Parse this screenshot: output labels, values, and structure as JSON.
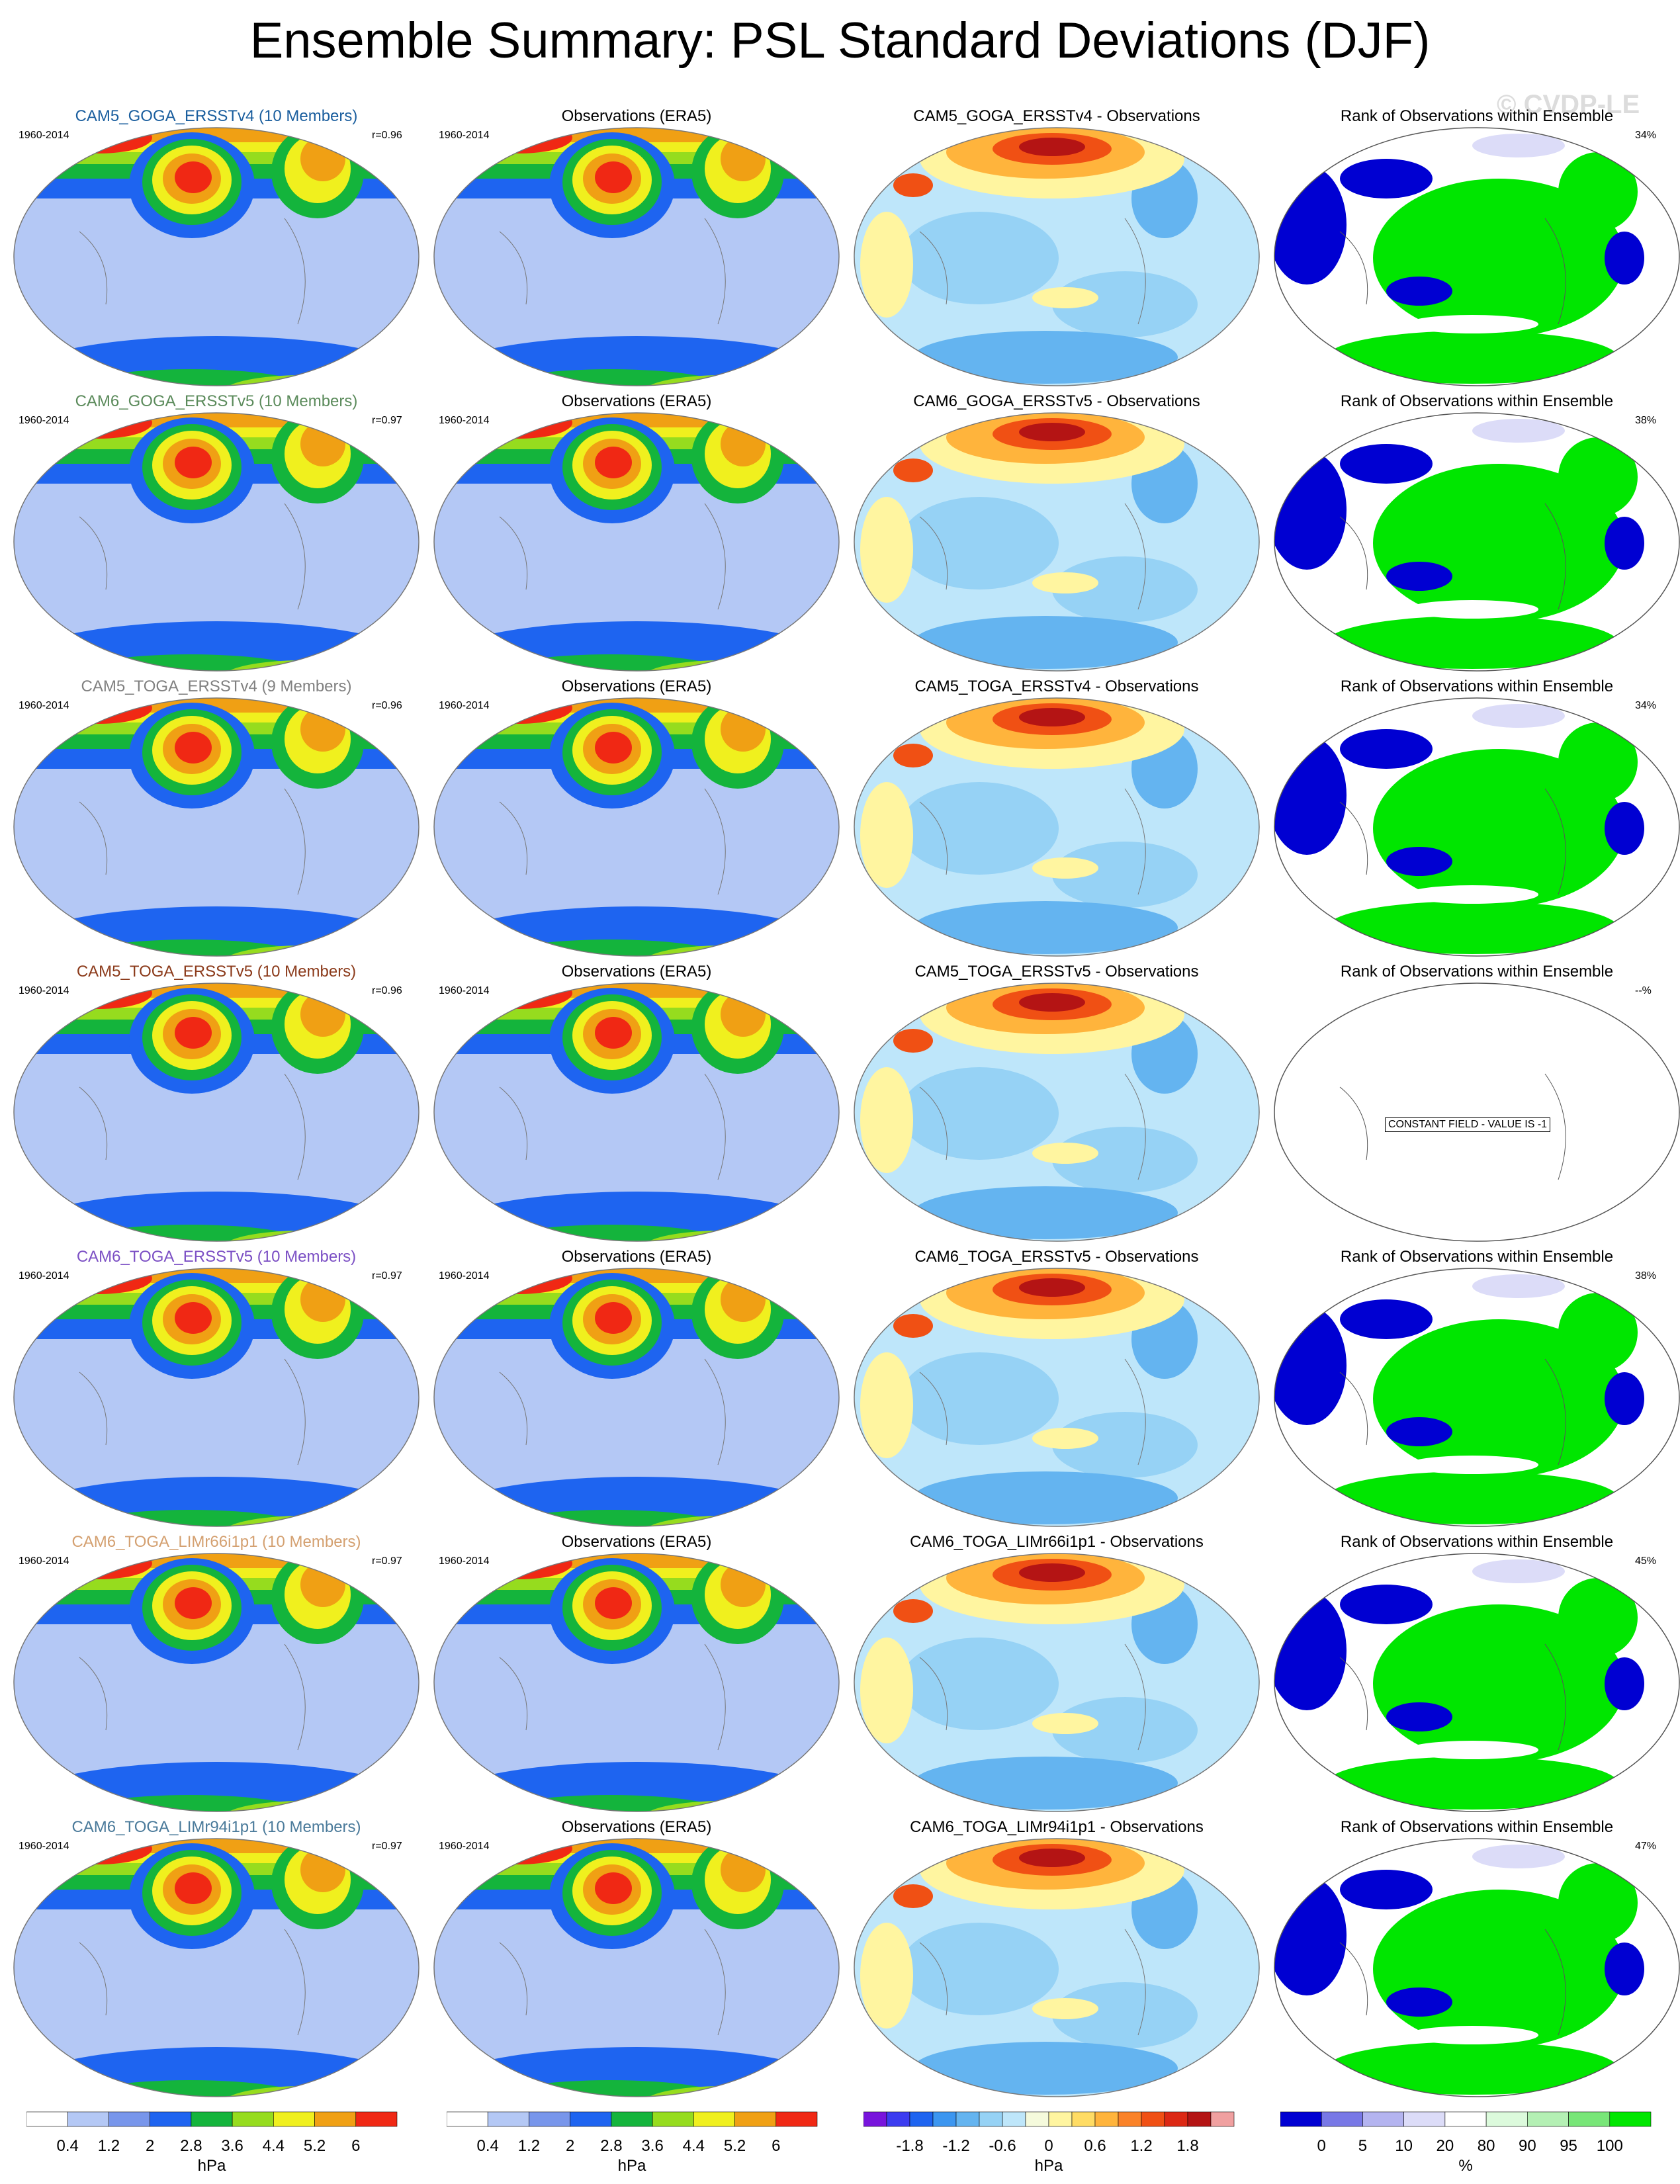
{
  "title": "Ensemble Summary: PSL Standard Deviations (DJF)",
  "watermark": "© CVDP-LE",
  "years": "1960-2014",
  "rows": [
    {
      "ens": "CAM5_GOGA_ERSSTv4 (10 Members)",
      "ens_color": "#1a5e9e",
      "r": "r=0.96",
      "obs": "Observations (ERA5)",
      "diff": "CAM5_GOGA_ERSSTv4 - Observations",
      "rank": "Rank of Observations within Ensemble",
      "pct": "34%"
    },
    {
      "ens": "CAM6_GOGA_ERSSTv5 (10 Members)",
      "ens_color": "#5a8a5a",
      "r": "r=0.97",
      "obs": "Observations (ERA5)",
      "diff": "CAM6_GOGA_ERSSTv5 - Observations",
      "rank": "Rank of Observations within Ensemble",
      "pct": "38%"
    },
    {
      "ens": "CAM5_TOGA_ERSSTv4 (9 Members)",
      "ens_color": "#808080",
      "r": "r=0.96",
      "obs": "Observations (ERA5)",
      "diff": "CAM5_TOGA_ERSSTv4 - Observations",
      "rank": "Rank of Observations within Ensemble",
      "pct": "34%"
    },
    {
      "ens": "CAM5_TOGA_ERSSTv5 (10 Members)",
      "ens_color": "#8b3a1a",
      "r": "r=0.96",
      "obs": "Observations (ERA5)",
      "diff": "CAM5_TOGA_ERSSTv5 - Observations",
      "rank": "Rank of Observations within Ensemble",
      "pct": "--%",
      "constant_note": "CONSTANT FIELD - VALUE IS -1"
    },
    {
      "ens": "CAM6_TOGA_ERSSTv5 (10 Members)",
      "ens_color": "#7b4fc4",
      "r": "r=0.97",
      "obs": "Observations (ERA5)",
      "diff": "CAM6_TOGA_ERSSTv5 - Observations",
      "rank": "Rank of Observations within Ensemble",
      "pct": "38%"
    },
    {
      "ens": "CAM6_TOGA_LIMr66i1p1 (10 Members)",
      "ens_color": "#d4a070",
      "r": "r=0.97",
      "obs": "Observations (ERA5)",
      "diff": "CAM6_TOGA_LIMr66i1p1 - Observations",
      "rank": "Rank of Observations within Ensemble",
      "pct": "45%"
    },
    {
      "ens": "CAM6_TOGA_LIMr94i1p1 (10 Members)",
      "ens_color": "#4a7a9a",
      "r": "r=0.97",
      "obs": "Observations (ERA5)",
      "diff": "CAM6_TOGA_LIMr94i1p1 - Observations",
      "rank": "Rank of Observations within Ensemble",
      "pct": "47%"
    }
  ],
  "colorbars": [
    {
      "labels": [
        "0.4",
        "1.2",
        "2",
        "2.8",
        "3.6",
        "4.4",
        "5.2",
        "6"
      ],
      "unit": "hPa",
      "colors": [
        "#ffffff",
        "#b4c8f5",
        "#7896eb",
        "#1e64f0",
        "#14b43c",
        "#96dc1e",
        "#f0f01e",
        "#f0a014",
        "#f02814"
      ]
    },
    {
      "labels": [
        "0.4",
        "1.2",
        "2",
        "2.8",
        "3.6",
        "4.4",
        "5.2",
        "6"
      ],
      "unit": "hPa",
      "colors": [
        "#ffffff",
        "#b4c8f5",
        "#7896eb",
        "#1e64f0",
        "#14b43c",
        "#96dc1e",
        "#f0f01e",
        "#f0a014",
        "#f02814"
      ]
    },
    {
      "labels": [
        "-1.8",
        "-1.2",
        "-0.6",
        "0",
        "0.6",
        "1.2",
        "1.8"
      ],
      "unit": "hPa",
      "colors": [
        "#7814dc",
        "#3c3cf0",
        "#1e64f0",
        "#3c96f0",
        "#64b4f0",
        "#96d2f5",
        "#bee6fa",
        "#f5fadc",
        "#fff5a0",
        "#ffdc64",
        "#ffb43c",
        "#fa8228",
        "#f05014",
        "#dc2814",
        "#b41414",
        "#f0a0a0"
      ]
    },
    {
      "labels": [
        "0",
        "5",
        "10",
        "20",
        "80",
        "90",
        "95",
        "100"
      ],
      "unit": "%",
      "colors": [
        "#0000d2",
        "#7878e6",
        "#b4b4f0",
        "#dcdcf8",
        "#ffffff",
        "#dcfadc",
        "#b4f0b4",
        "#78e678",
        "#00e600"
      ]
    }
  ]
}
